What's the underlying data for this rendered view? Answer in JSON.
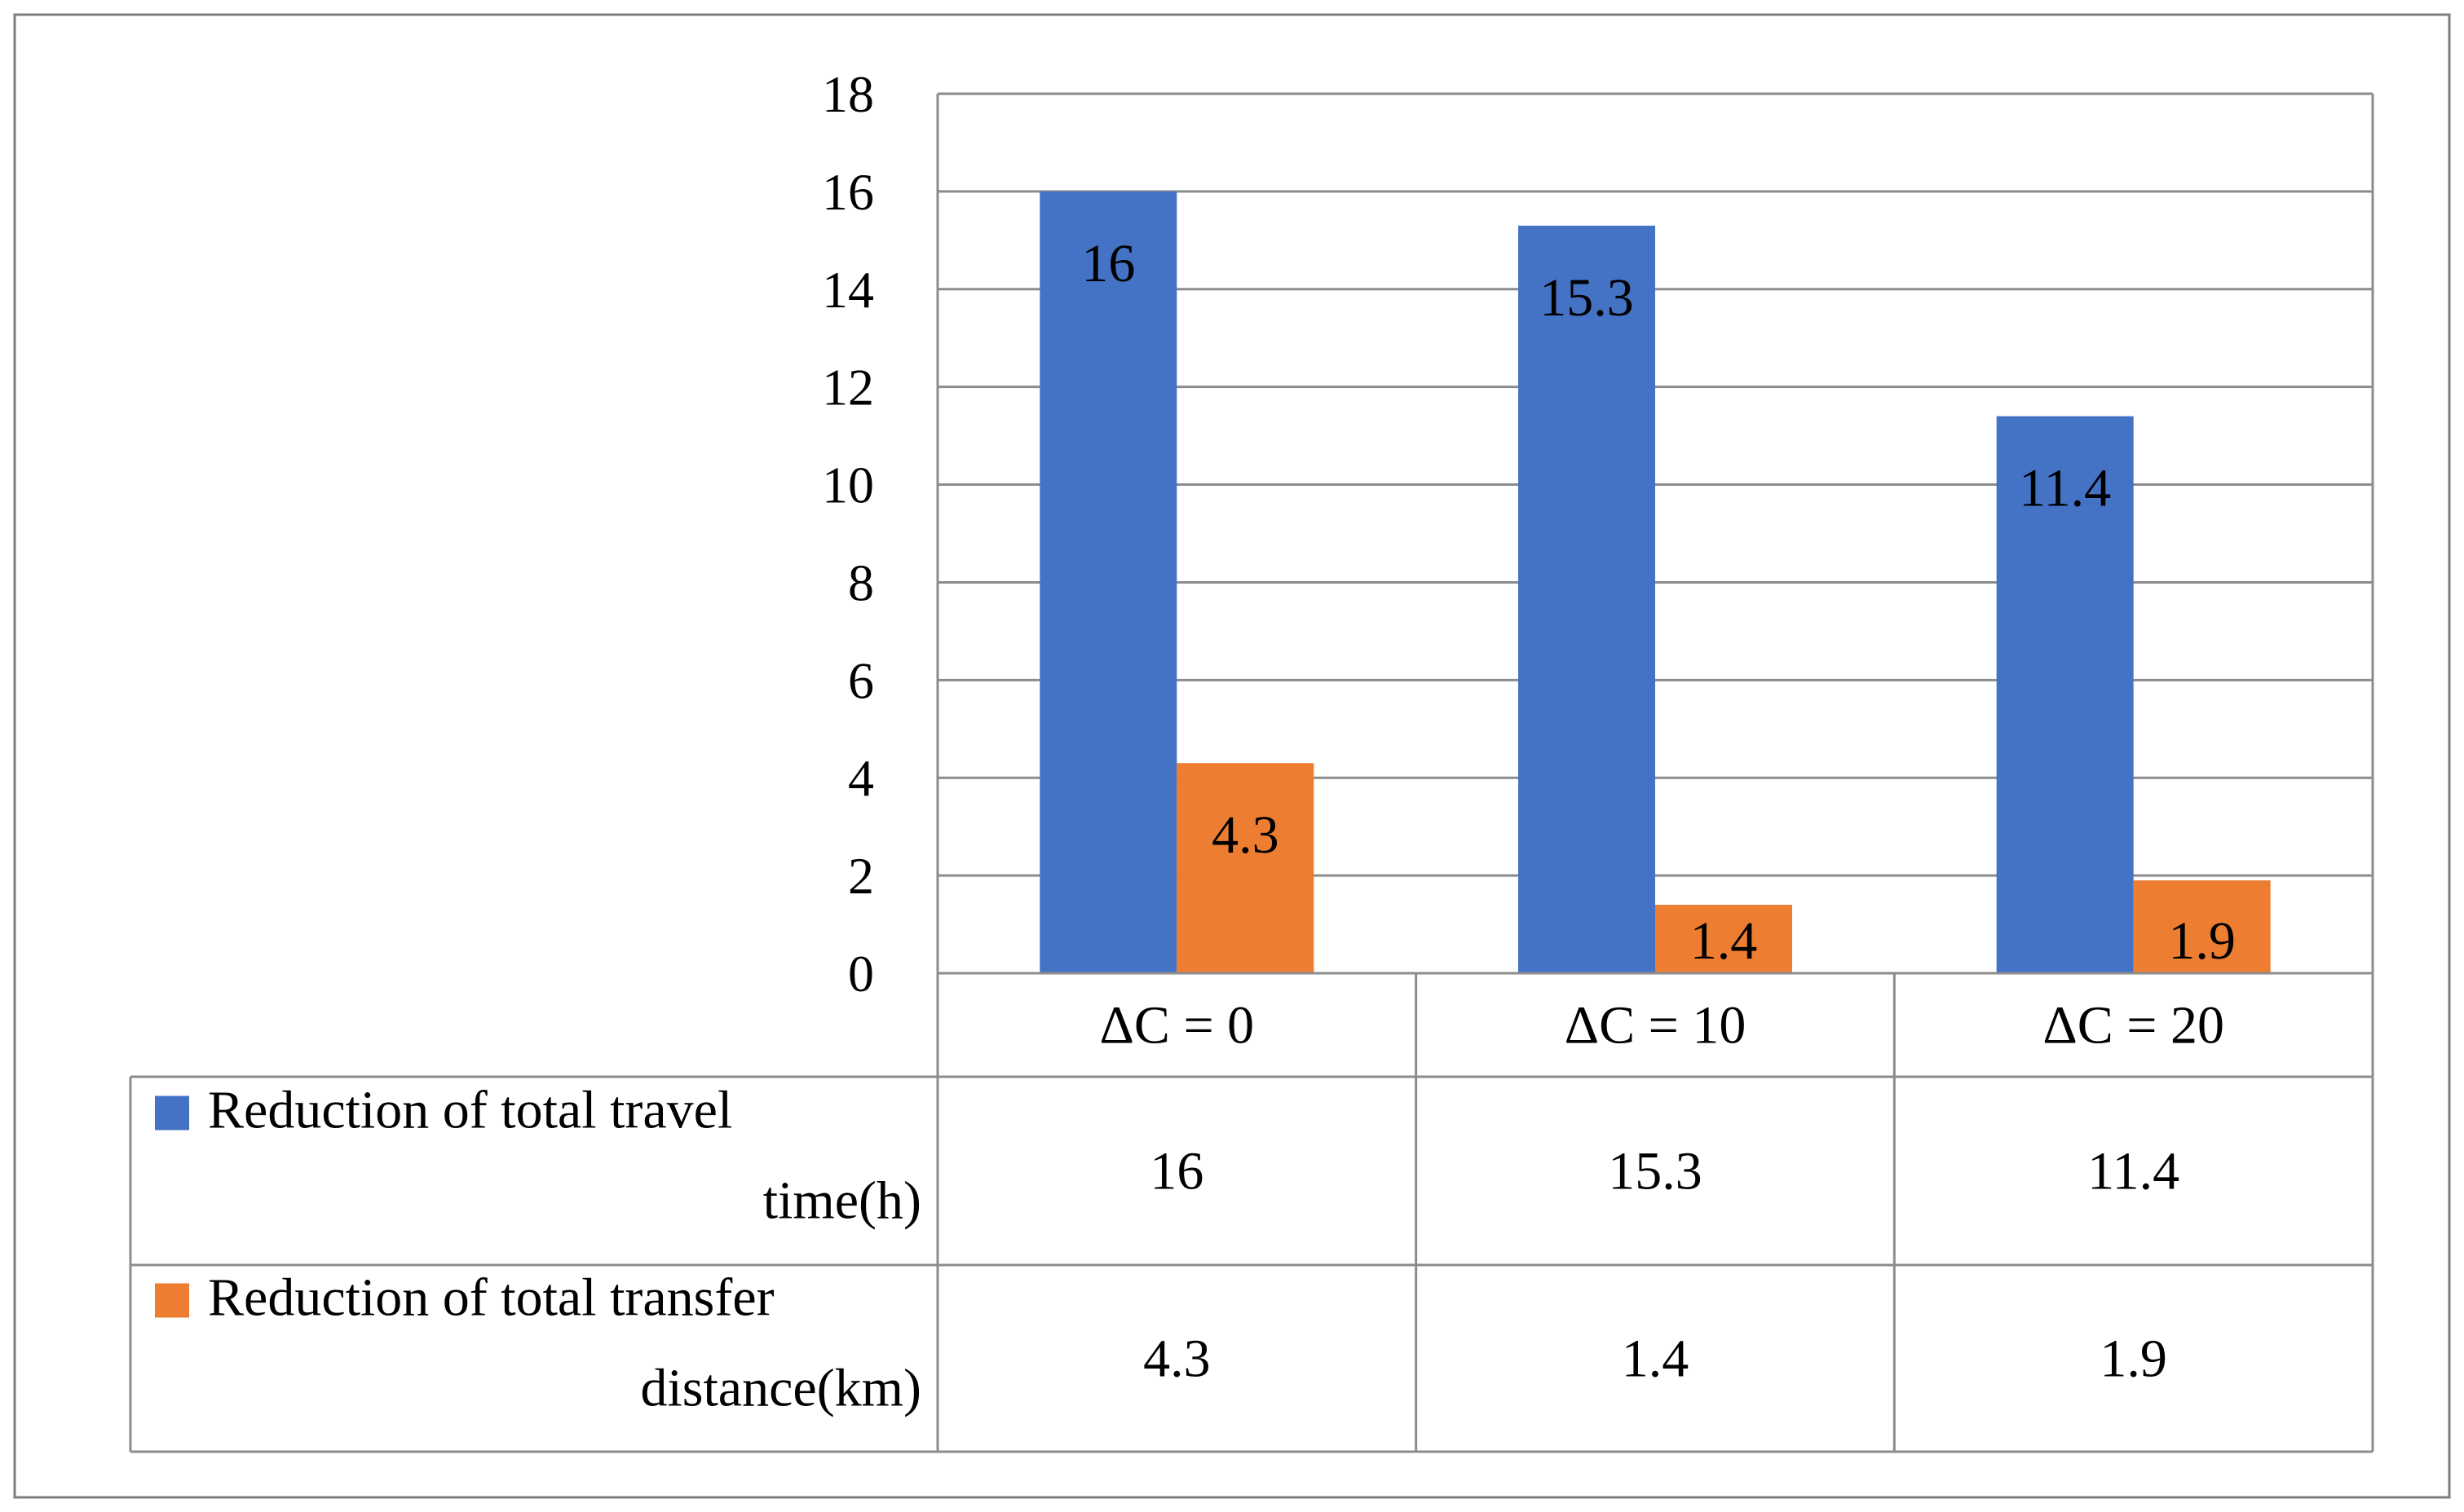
{
  "chart_data": {
    "type": "bar",
    "categories": [
      "ΔC = 0",
      "ΔC = 10",
      "ΔC = 20"
    ],
    "series": [
      {
        "name": "Reduction of total travel time(h)",
        "name_lines": [
          "Reduction of total travel",
          "time(h)"
        ],
        "values": [
          16,
          15.3,
          11.4
        ],
        "color": "#4472C4"
      },
      {
        "name": "Reduction of total transfer distance(km)",
        "name_lines": [
          "Reduction of total transfer",
          "distance(km)"
        ],
        "values": [
          4.3,
          1.4,
          1.9
        ],
        "color": "#ED7D31"
      }
    ],
    "ylim": [
      0,
      18
    ],
    "ytick_step": 2,
    "yticks": [
      "0",
      "2",
      "4",
      "6",
      "8",
      "10",
      "12",
      "14",
      "16",
      "18"
    ],
    "data_labels": true,
    "grid": true,
    "legend": "data-table",
    "title": "",
    "xlabel": "",
    "ylabel": ""
  }
}
